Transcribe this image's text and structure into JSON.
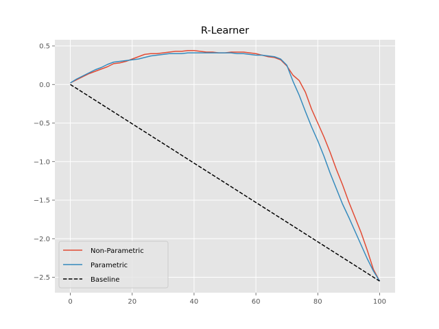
{
  "chart_data": {
    "type": "line",
    "title": "R-Learner",
    "xlabel": "",
    "ylabel": "",
    "xlim": [
      -5,
      105
    ],
    "ylim": [
      -2.7,
      0.58
    ],
    "xticks": [
      0,
      20,
      40,
      60,
      80,
      100
    ],
    "xtick_labels": [
      "0",
      "20",
      "40",
      "60",
      "80",
      "100"
    ],
    "yticks": [
      0.5,
      0.0,
      -0.5,
      -1.0,
      -1.5,
      -2.0,
      -2.5
    ],
    "ytick_labels": [
      "0.5",
      "0.0",
      "−0.5",
      "−1.0",
      "−1.5",
      "−2.0",
      "−2.5"
    ],
    "grid": true,
    "legend_position": "lower-left",
    "series": [
      {
        "name": "Non-Parametric",
        "color": "#E24A33",
        "style": "solid",
        "x": [
          0,
          2,
          4,
          6,
          8,
          10,
          12,
          14,
          16,
          18,
          20,
          22,
          24,
          26,
          28,
          30,
          32,
          34,
          36,
          38,
          40,
          42,
          44,
          46,
          48,
          50,
          52,
          54,
          56,
          58,
          60,
          62,
          64,
          66,
          68,
          70,
          72,
          74,
          76,
          78,
          80,
          82,
          84,
          86,
          88,
          90,
          92,
          94,
          96,
          98,
          100
        ],
        "y": [
          0.02,
          0.06,
          0.1,
          0.14,
          0.17,
          0.2,
          0.23,
          0.27,
          0.28,
          0.3,
          0.33,
          0.36,
          0.39,
          0.4,
          0.4,
          0.41,
          0.42,
          0.43,
          0.43,
          0.44,
          0.44,
          0.43,
          0.42,
          0.42,
          0.41,
          0.41,
          0.42,
          0.42,
          0.42,
          0.41,
          0.4,
          0.38,
          0.36,
          0.35,
          0.32,
          0.24,
          0.12,
          0.05,
          -0.1,
          -0.32,
          -0.5,
          -0.68,
          -0.88,
          -1.1,
          -1.3,
          -1.52,
          -1.72,
          -1.92,
          -2.15,
          -2.4,
          -2.55
        ]
      },
      {
        "name": "Parametric",
        "color": "#348ABD",
        "style": "solid",
        "x": [
          0,
          2,
          4,
          6,
          8,
          10,
          12,
          14,
          16,
          18,
          20,
          22,
          24,
          26,
          28,
          30,
          32,
          34,
          36,
          38,
          40,
          42,
          44,
          46,
          48,
          50,
          52,
          54,
          56,
          58,
          60,
          62,
          64,
          66,
          68,
          70,
          72,
          74,
          76,
          78,
          80,
          82,
          84,
          86,
          88,
          90,
          92,
          94,
          96,
          98,
          100
        ],
        "y": [
          0.02,
          0.07,
          0.11,
          0.15,
          0.19,
          0.22,
          0.26,
          0.29,
          0.3,
          0.31,
          0.32,
          0.33,
          0.35,
          0.37,
          0.38,
          0.39,
          0.4,
          0.4,
          0.4,
          0.41,
          0.41,
          0.41,
          0.41,
          0.41,
          0.41,
          0.41,
          0.41,
          0.4,
          0.4,
          0.39,
          0.38,
          0.38,
          0.37,
          0.36,
          0.33,
          0.25,
          0.04,
          -0.14,
          -0.35,
          -0.55,
          -0.73,
          -0.93,
          -1.15,
          -1.35,
          -1.55,
          -1.72,
          -1.9,
          -2.08,
          -2.26,
          -2.42,
          -2.55
        ]
      },
      {
        "name": "Baseline",
        "color": "#000000",
        "style": "dashed",
        "x": [
          0,
          100
        ],
        "y": [
          0.0,
          -2.55
        ]
      }
    ]
  }
}
